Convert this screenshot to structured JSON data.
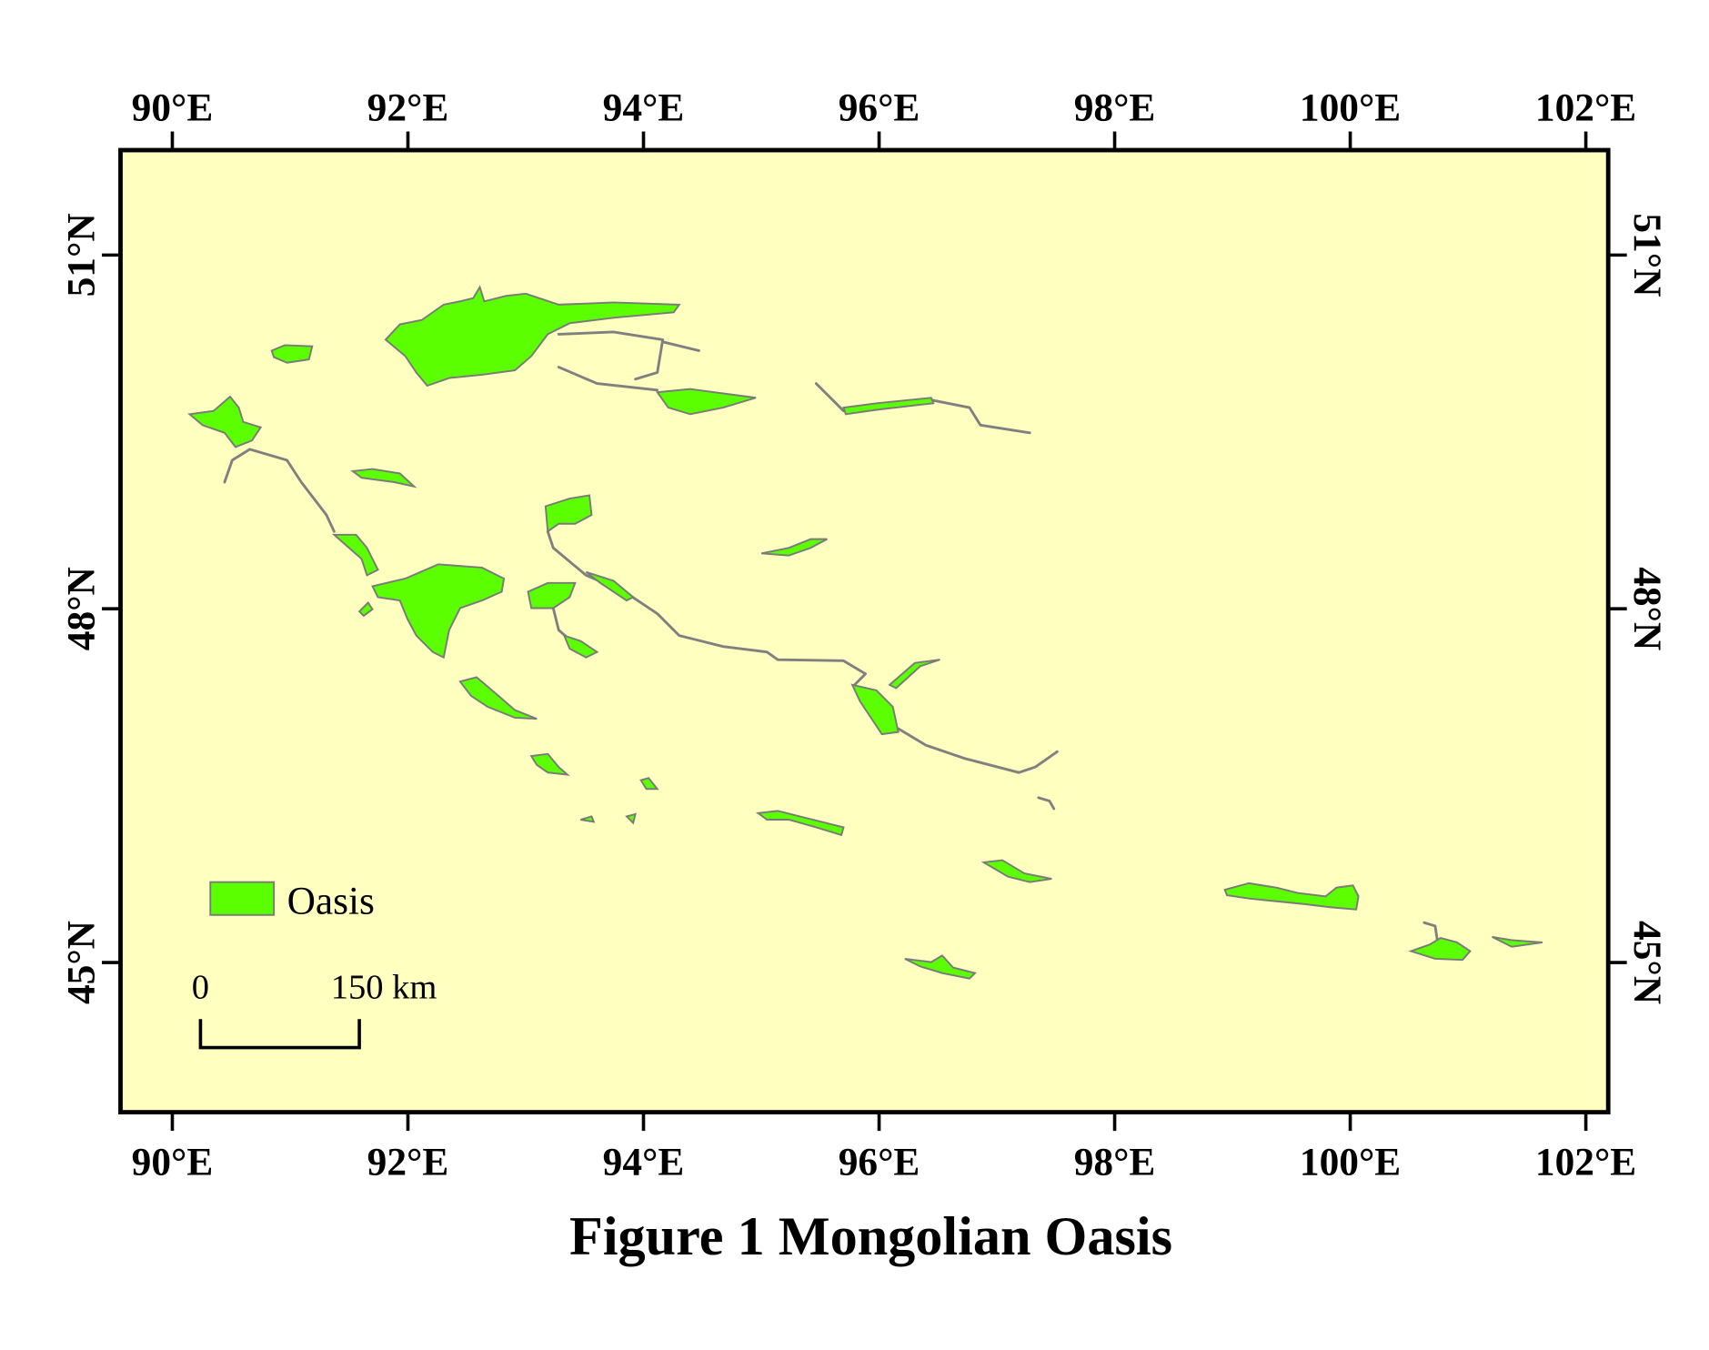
{
  "title": "Figure 1  Mongolian Oasis",
  "colors": {
    "background": "#ffffc0",
    "oasis": "#5cff00",
    "outline": "#7a7a7a",
    "frame": "#000000"
  },
  "axes": {
    "lon_ticks": [
      90,
      92,
      94,
      96,
      98,
      100,
      102
    ],
    "lon_labels": [
      "90°E",
      "92°E",
      "94°E",
      "96°E",
      "98°E",
      "100°E",
      "102°E"
    ],
    "lat_ticks": [
      51,
      48,
      45
    ],
    "lat_labels": [
      "51°N",
      "48°N",
      "45°N"
    ],
    "lon_range": [
      89.56,
      102.19
    ],
    "lat_range": [
      43.73,
      51.89
    ]
  },
  "legend": {
    "label": "Oasis",
    "placement": "bottom-left"
  },
  "scale_bar": {
    "start_label": "0",
    "end_label": "150 km"
  }
}
